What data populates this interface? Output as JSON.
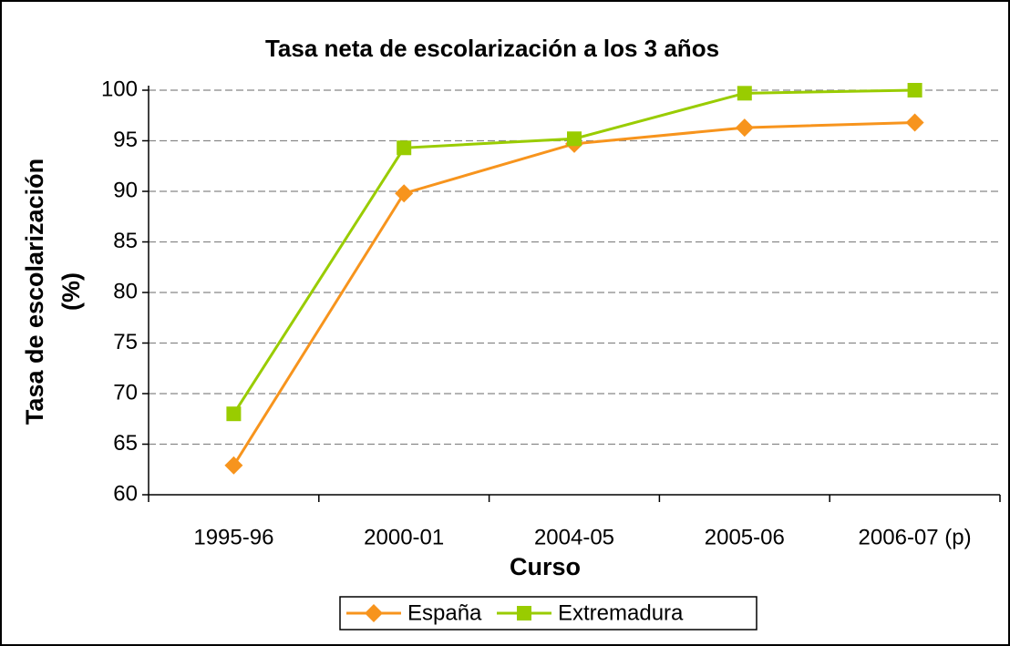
{
  "chart_data": {
    "type": "line",
    "title": "Tasa neta de escolarización a los 3 años",
    "x_label": "Curso",
    "y_label": [
      "Tasa de escolarización",
      "(%)"
    ],
    "categories": [
      "1995-96",
      "2000-01",
      "2004-05",
      "2005-06",
      "2006-07 (p)"
    ],
    "series": [
      {
        "name": "España",
        "color": "#f7941d",
        "marker": "diamond",
        "values": [
          62.9,
          89.8,
          94.7,
          96.3,
          96.8
        ]
      },
      {
        "name": "Extremadura",
        "color": "#99cc00",
        "marker": "square",
        "values": [
          68.0,
          94.3,
          95.2,
          99.7,
          100.0
        ]
      }
    ],
    "ylim": [
      60,
      100
    ],
    "yticks": [
      60,
      65,
      70,
      75,
      80,
      85,
      90,
      95,
      100
    ],
    "grid": true,
    "legend": "bottom"
  }
}
